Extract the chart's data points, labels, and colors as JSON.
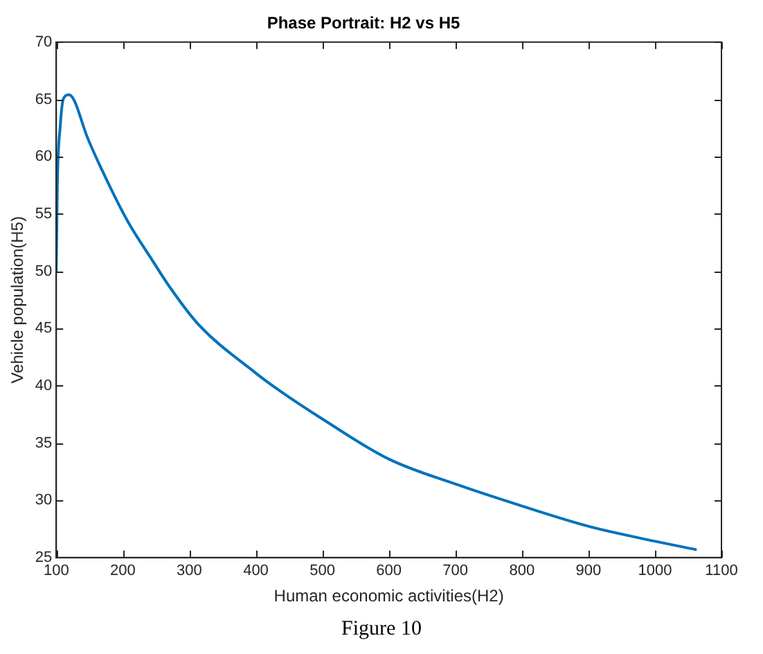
{
  "chart_data": {
    "type": "line",
    "title": "Phase Portrait: H2 vs H5",
    "xlabel": "Human economic activities(H2)",
    "ylabel": "Vehicle population(H5)",
    "annotations": [
      "Figure 10"
    ],
    "series": [
      {
        "color": "#0072bd",
        "x": [
          100,
          101.6,
          106,
          111,
          119,
          127,
          146,
          169,
          207,
          245,
          272,
          313,
          400,
          435,
          500,
          600,
          701,
          800,
          902,
          1002,
          1061
        ],
        "values": [
          50,
          57.5,
          62.7,
          65.1,
          65.4,
          64.9,
          61.8,
          58.8,
          54.4,
          50.9,
          48.5,
          45.4,
          41.1,
          39.6,
          37.1,
          33.6,
          31.4,
          29.5,
          27.7,
          26.4,
          25.7
        ]
      }
    ],
    "xlim": [
      100,
      1100
    ],
    "xticks": [
      100,
      200,
      300,
      400,
      500,
      600,
      700,
      800,
      900,
      1000,
      1100
    ],
    "ylim": [
      25,
      70
    ],
    "yticks": [
      25,
      30,
      35,
      40,
      45,
      50,
      55,
      60,
      65,
      70
    ],
    "grid": false,
    "legend": false,
    "marker": "none",
    "line_style": "solid"
  }
}
